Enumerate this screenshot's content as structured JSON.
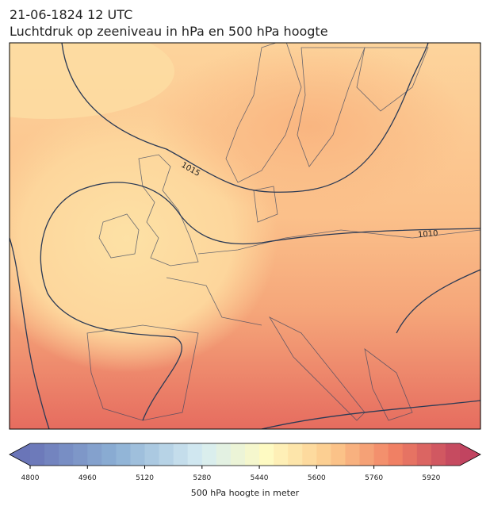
{
  "title": {
    "line1": "21-06-1824 12 UTC",
    "line2": "Luchtdruk op zeeniveau in hPa en 500 hPa hoogte"
  },
  "contour_labels": [
    "1015",
    "1010"
  ],
  "colorbar": {
    "label": "500 hPa hoogte in meter",
    "lim": [
      4800,
      6000
    ],
    "ticks": [
      4800,
      4960,
      5120,
      5280,
      5440,
      5600,
      5760,
      5920
    ]
  }
}
